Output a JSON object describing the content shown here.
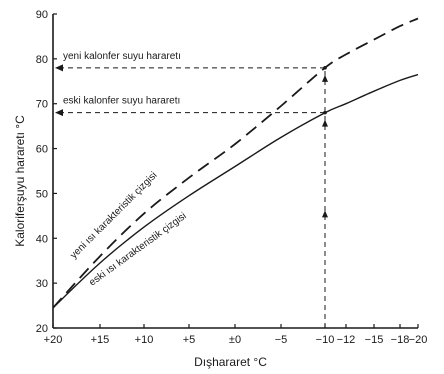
{
  "chart_data": {
    "type": "line",
    "xlabel": "Dışhararet °C",
    "ylabel": "Kaloriferşuyu hararetı °C",
    "xlim": [
      20,
      -20
    ],
    "ylim": [
      20,
      90
    ],
    "x_ticks": [
      20,
      15,
      10,
      5,
      0,
      -5,
      -10,
      -12,
      -15,
      -18,
      -20
    ],
    "x_tick_labels": [
      "+20",
      "+15",
      "+10",
      "+5",
      "±0",
      "−5",
      "−10",
      "−12",
      "−15",
      "−18",
      "−20"
    ],
    "y_ticks": [
      20,
      30,
      40,
      50,
      60,
      70,
      80,
      90
    ],
    "y_tick_labels": [
      "20",
      "30",
      "40",
      "50",
      "60",
      "70",
      "80",
      "90"
    ],
    "grid": false,
    "series": [
      {
        "name": "yeni ısı karakteristik çizgisi",
        "style": "dashed",
        "color": "#1a1a1a",
        "x": [
          20,
          15,
          10,
          5,
          0,
          -5,
          -10,
          -12,
          -15,
          -18,
          -20
        ],
        "y": [
          24.5,
          36,
          45.5,
          53.5,
          61,
          69.5,
          78,
          81,
          84.3,
          87.3,
          89
        ]
      },
      {
        "name": "eski ısı karakteristik çizgisi",
        "style": "solid",
        "color": "#1a1a1a",
        "x": [
          20,
          15,
          10,
          5,
          0,
          -5,
          -10,
          -12,
          -15,
          -18,
          -20
        ],
        "y": [
          24.5,
          34.5,
          42.5,
          49.5,
          56,
          62.5,
          68,
          70,
          72.8,
          75.2,
          76.5
        ]
      }
    ],
    "annotations": [
      {
        "name": "yeni-kalorifer-suyu-harareti",
        "text": "yeni kalonfer suyu hararetı",
        "x": -10,
        "y": 78
      },
      {
        "name": "eski-kalorifer-suyu-harareti",
        "text": "eski kalonfer suyu hararetı",
        "x": -10,
        "y": 68
      }
    ]
  }
}
